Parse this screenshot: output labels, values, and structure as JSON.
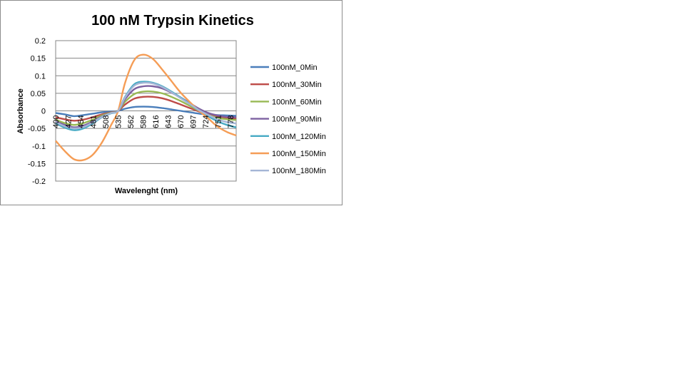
{
  "chart_data": {
    "type": "line",
    "title": "100 nM Trypsin Kinetics",
    "xlabel": "Wavelenght (nm)",
    "ylabel": "Absorbance",
    "ylim": [
      -0.2,
      0.2
    ],
    "yticks": [
      "0.2",
      "0.15",
      "0.1",
      "0.05",
      "0",
      "-0.05",
      "-0.1",
      "-0.15",
      "-0.2"
    ],
    "xticks": [
      "400",
      "427",
      "454",
      "481",
      "508",
      "535",
      "562",
      "589",
      "616",
      "643",
      "670",
      "697",
      "724",
      "751",
      "778"
    ],
    "x": [
      400,
      420,
      440,
      460,
      480,
      500,
      520,
      535,
      550,
      570,
      590,
      610,
      630,
      650,
      670,
      690,
      710,
      730,
      750,
      770,
      790
    ],
    "grid": true,
    "legend_position": "right",
    "series": [
      {
        "name": "100nM_0Min",
        "color": "#4a7ebb",
        "values": [
          -0.006,
          -0.01,
          -0.015,
          -0.012,
          -0.008,
          -0.004,
          -0.002,
          0.0,
          0.006,
          0.011,
          0.012,
          0.011,
          0.008,
          0.004,
          0.0,
          -0.004,
          -0.008,
          -0.01,
          -0.012,
          -0.013,
          -0.014
        ]
      },
      {
        "name": "100nM_30Min",
        "color": "#be4b48",
        "values": [
          -0.018,
          -0.024,
          -0.028,
          -0.025,
          -0.018,
          -0.01,
          -0.004,
          0.0,
          0.018,
          0.035,
          0.04,
          0.04,
          0.036,
          0.028,
          0.018,
          0.008,
          -0.002,
          -0.01,
          -0.016,
          -0.02,
          -0.022
        ]
      },
      {
        "name": "100nM_60Min",
        "color": "#98b954",
        "values": [
          -0.025,
          -0.035,
          -0.04,
          -0.035,
          -0.025,
          -0.013,
          -0.005,
          0.0,
          0.026,
          0.048,
          0.055,
          0.055,
          0.05,
          0.04,
          0.028,
          0.014,
          0.0,
          -0.012,
          -0.02,
          -0.024,
          -0.026
        ]
      },
      {
        "name": "100nM_90Min",
        "color": "#7d60a0",
        "values": [
          -0.03,
          -0.04,
          -0.047,
          -0.042,
          -0.03,
          -0.016,
          -0.006,
          0.0,
          0.033,
          0.062,
          0.07,
          0.07,
          0.064,
          0.052,
          0.038,
          0.022,
          0.006,
          -0.006,
          -0.013,
          -0.017,
          -0.018
        ]
      },
      {
        "name": "100nM_120Min",
        "color": "#46aac4",
        "values": [
          -0.035,
          -0.048,
          -0.055,
          -0.05,
          -0.036,
          -0.018,
          -0.007,
          0.0,
          0.04,
          0.076,
          0.083,
          0.08,
          0.07,
          0.055,
          0.038,
          0.02,
          0.0,
          -0.016,
          -0.03,
          -0.04,
          -0.047
        ]
      },
      {
        "name": "100nM_150Min",
        "color": "#f59d56",
        "values": [
          -0.085,
          -0.115,
          -0.138,
          -0.14,
          -0.125,
          -0.09,
          -0.04,
          0.0,
          0.08,
          0.145,
          0.16,
          0.148,
          0.118,
          0.085,
          0.052,
          0.025,
          0.0,
          -0.022,
          -0.045,
          -0.06,
          -0.07
        ]
      },
      {
        "name": "100nM_180Min",
        "color": "#a5b6d6",
        "values": [
          -0.032,
          -0.044,
          -0.05,
          -0.046,
          -0.033,
          -0.017,
          -0.006,
          0.0,
          0.038,
          0.072,
          0.08,
          0.078,
          0.068,
          0.053,
          0.036,
          0.019,
          0.002,
          -0.012,
          -0.024,
          -0.032,
          -0.036
        ]
      }
    ]
  }
}
